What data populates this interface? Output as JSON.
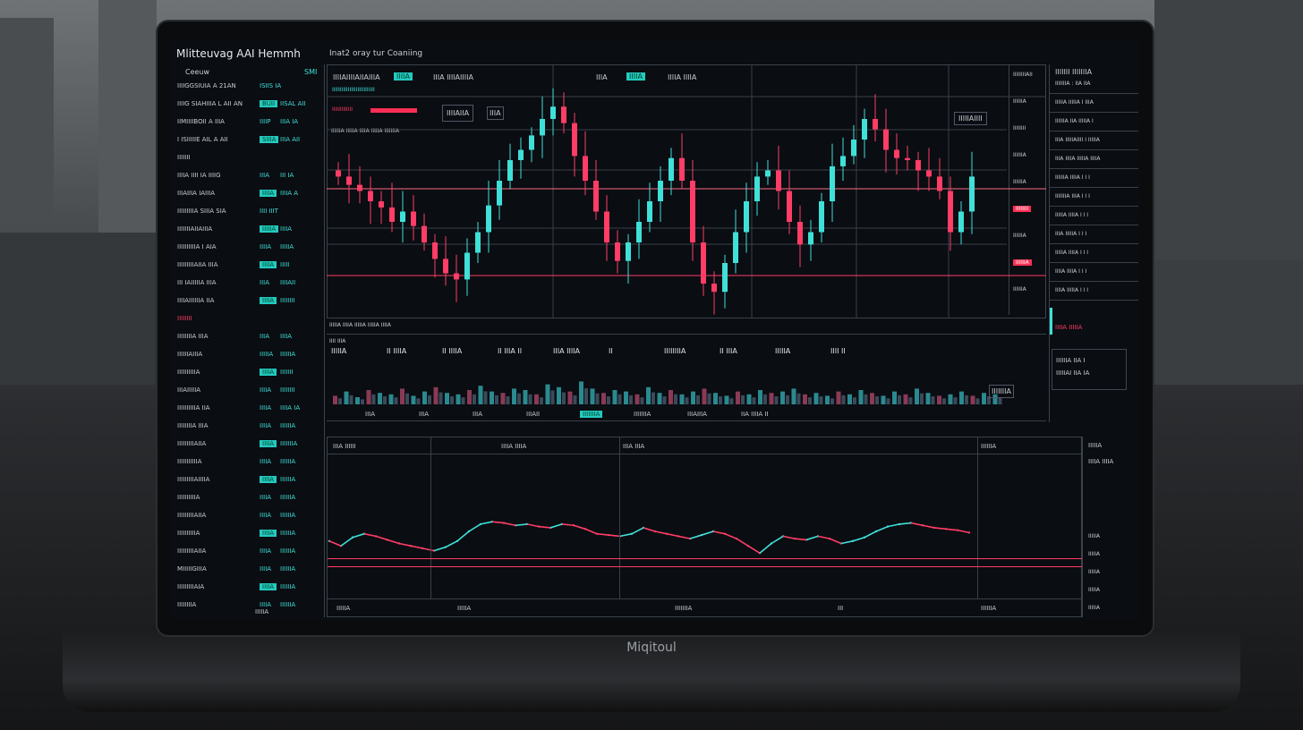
{
  "app": {
    "title": "Mlitteuvag AAI Hemmh",
    "subtitle": "Inat2 oray tur Coaniing",
    "brand": "Miqitoul"
  },
  "colors": {
    "up": "#3fe0d8",
    "down": "#ff3d66",
    "background": "#0a0d12"
  },
  "left_panel": {
    "header": "Ceeuw",
    "header_right": "SMI",
    "rows": [
      [
        "IIIIGGSIUIA A 21AN",
        "ISIIS IA",
        "",
        "n"
      ],
      [
        "IIIIG SIAHIIIA L AII AN",
        "BUII",
        "IISAL AII",
        "h"
      ],
      [
        "IIMIIIIBOII A IIIA",
        "IIIIP",
        "IIIA IA",
        "n"
      ],
      [
        "I ISIIIIIE AIL A AII",
        "SIIIA",
        "IIIA AII",
        "h"
      ],
      [
        "IIIIIII",
        "",
        "",
        "n"
      ],
      [
        "IIIIA IIII IA IIIIG",
        "IIIA",
        "III IA",
        "n"
      ],
      [
        "IIIAIIIA IAIIIA",
        "IIIIA",
        "IIIIA A",
        "h"
      ],
      [
        "IIIIIIIIIA SIIIA SIA",
        "IIII IIIT",
        "",
        "n"
      ],
      [
        "IIIIIIIAIIAIIIA",
        "IIIIIA",
        "IIIIA",
        "h"
      ],
      [
        "IIIIIIIIIIA I AIA",
        "IIIIA",
        "IIIIIA",
        "n"
      ],
      [
        "IIIIIIIIIAIIA IIIA",
        "IIIIA",
        "IIIII",
        "h"
      ],
      [
        "III IAIIIIIA IIIA",
        "IIIA",
        "IIIIAII",
        "n"
      ],
      [
        "IIIIAIIIIIIA IIA",
        "IIIIA",
        "IIIIIIII",
        "h"
      ],
      [
        "IIIIIIII",
        "",
        "",
        "r"
      ],
      [
        "IIIIIIIIA IIIA",
        "IIIA",
        "IIIIA",
        "n"
      ],
      [
        "IIIIIIAIIIA",
        "IIIIIA",
        "IIIIIIA",
        "n"
      ],
      [
        "IIIIIIIIIIA",
        "IIIIA",
        "IIIIIII",
        "h"
      ],
      [
        "IIIAIIIIIA",
        "IIIIA",
        "IIIIIIII",
        "n"
      ],
      [
        "IIIIIIIIIIA IIA",
        "IIIIA",
        "IIIIA IA",
        "n"
      ],
      [
        "IIIIIIIIA IIIA",
        "IIIIA",
        "IIIIIIA",
        "n"
      ],
      [
        "IIIIIIIIIAIIA",
        "IIIIA",
        "IIIIIIIA",
        "h"
      ],
      [
        "IIIIIIIIIIIA",
        "IIIIA",
        "IIIIIIA",
        "n"
      ],
      [
        "IIIIIIIIIAIIIIA",
        "IIIIA",
        "IIIIIIA",
        "h"
      ],
      [
        "IIIIIIIIIIA",
        "IIIIA",
        "IIIIIIA",
        "n"
      ],
      [
        "IIIIIIIIIAIIA",
        "IIIIA",
        "IIIIIIA",
        "n"
      ],
      [
        "IIIIIIIIIIA",
        "IIIIA",
        "IIIIIIA",
        "h"
      ],
      [
        "IIIIIIIIIAIIA",
        "IIIIA",
        "IIIIIIA",
        "n"
      ],
      [
        "MIIIIIGIIIA",
        "IIIIA",
        "IIIIIIA",
        "n"
      ],
      [
        "IIIIIIIIIAIA",
        "IIIIA",
        "IIIIIIA",
        "h"
      ],
      [
        "IIIIIIIIA",
        "IIIIA",
        "IIIIIIA",
        "n"
      ]
    ],
    "footer": "IIIIIA"
  },
  "chart": {
    "header": "IIIIAIIIIAIIAIIIA",
    "header_badge": "IIIIA",
    "header_mid": "IIIA IIIIAIIIIA",
    "header_right": "IIIA",
    "header_badge2": "IIIIA",
    "header_right2": "IIIIA IIIIA",
    "row2": "IIIIIIIIIIIIIIIIIIIIIIIIIII",
    "row3": "IIIIIIIIIIIII",
    "row3_box": "IIIIAIIA",
    "row3_box2": "IIIA",
    "legend": "IIIIIIA IIIIIA IIIIA IIIIIA IIIIIIIA",
    "tooltip": "IIIIIAIIII",
    "price_axis": [
      "IIIIIIIIAII",
      "IIIIIIA",
      "IIIIIIII",
      "IIIIIIA",
      "IIIIIIA",
      "IIIIIIII",
      "IIIIIIA",
      "IIIIIIA",
      "IIIIIIA"
    ],
    "closes": [
      62,
      58,
      55,
      50,
      47,
      40,
      45,
      38,
      30,
      22,
      15,
      12,
      25,
      35,
      48,
      60,
      70,
      75,
      82,
      90,
      96,
      88,
      72,
      60,
      45,
      30,
      21,
      30,
      40,
      50,
      60,
      71,
      60,
      30,
      10,
      6,
      20,
      35,
      50,
      62,
      65,
      55,
      40,
      29,
      35,
      50,
      67,
      72,
      80,
      90,
      85,
      75,
      71,
      70,
      65,
      62,
      55,
      35,
      45,
      62
    ]
  },
  "volume": {
    "header": "IIIIIA IIIIA IIIIIA IIIIIA IIIIA",
    "sub": "IIII IIIA",
    "stats": [
      "IIIIIA",
      "II IIIIA",
      "II IIIIA",
      "II IIIA II",
      "IIIA IIIIA",
      "II",
      "IIIIIIIIA",
      "II IIIA",
      "IIIIIA",
      "IIII II"
    ],
    "values": [
      30,
      45,
      25,
      50,
      40,
      35,
      55,
      30,
      45,
      60,
      40,
      35,
      50,
      65,
      45,
      40,
      55,
      50,
      35,
      70,
      60,
      45,
      80,
      55,
      40,
      50,
      45,
      35,
      60,
      40,
      50,
      35,
      45,
      55,
      40,
      30,
      45,
      35,
      50,
      40,
      45,
      55,
      35,
      40,
      30,
      45,
      35,
      50,
      40,
      30,
      45,
      35,
      55,
      40,
      30,
      35,
      45,
      30,
      40,
      35
    ],
    "badge": "IIIIIIIA",
    "footer": [
      "IIIA",
      "IIIA",
      "IIIA",
      "IIIAII",
      "IIIIIIIA",
      "IIIIIIIA",
      "IIIAIIIA",
      "IIA IIIIA II"
    ]
  },
  "right_panel": {
    "title": "IIIIIII IIIIIIIA",
    "rows": [
      "IIIIIIIA : IIA IIA",
      "IIIIIA IIIIIA I IIIA",
      "IIIIIIA IIA IIIIIA I",
      "IIIA IIIIIAIIII I IIIIIA",
      "IIIA IIIIA IIIIIA IIIIA",
      "IIIIIIA IIIIA I  I  I",
      "IIIIIIIA IIIA I  I  I",
      "IIIIIA IIIIA I  I  I",
      "IIIA IIIIIA I  I  I",
      "IIIIIA IIIIA I  I  I",
      "IIIIA IIIIA I  I  I",
      "IIIIA IIIIIA I  I  I"
    ],
    "alert": "IIIIA IIIIIA",
    "box": [
      "IIIIIIA IIA I",
      "IIIIIAI IIA IA"
    ]
  },
  "bottom": {
    "headers": [
      "IIIA IIIIII",
      "IIIIA IIIIA",
      "IIIA IIIA"
    ],
    "header_right": "IIIIIIA",
    "col_title": "IIIIIA",
    "col_row": "IIIIA IIIIA",
    "side_labels": [
      "IIIIIA",
      "IIIIIA",
      "IIIIIA",
      "IIIIIA",
      "IIIIIA"
    ],
    "x_labels": [
      "IIIIIA",
      "IIIIIA",
      "IIIIIIIA",
      "III",
      "IIIIIIA"
    ],
    "line": [
      52,
      48,
      55,
      58,
      56,
      53,
      50,
      48,
      46,
      44,
      47,
      52,
      60,
      66,
      68,
      67,
      65,
      66,
      64,
      63,
      66,
      65,
      62,
      58,
      57,
      56,
      58,
      63,
      60,
      58,
      56,
      54,
      57,
      60,
      58,
      54,
      48,
      42,
      50,
      56,
      54,
      53,
      56,
      54,
      50,
      52,
      55,
      60,
      64,
      66,
      67,
      65,
      63,
      62,
      61,
      59
    ]
  }
}
